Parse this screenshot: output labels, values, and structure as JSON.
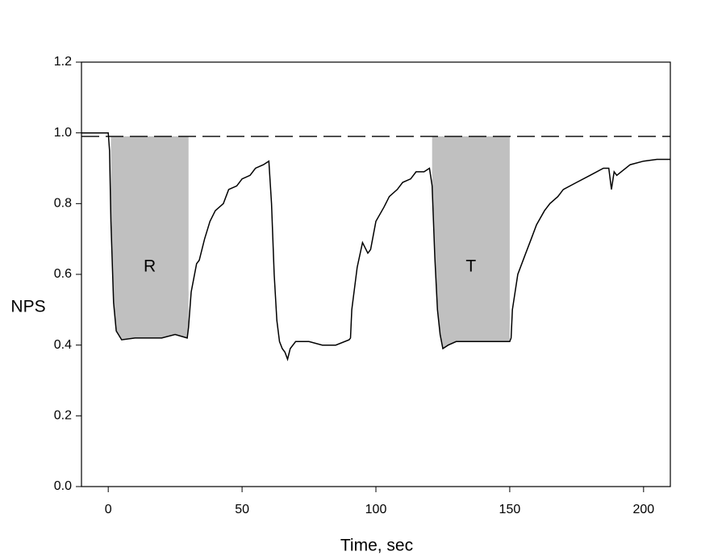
{
  "chart_data": {
    "type": "line",
    "x_label": "Time, sec",
    "y_label": "NPS",
    "xlim": [
      -10,
      210
    ],
    "ylim": [
      0,
      1.2
    ],
    "xticks": [
      0,
      50,
      100,
      150,
      200
    ],
    "yticks": [
      {
        "value": 0,
        "label": "0.0"
      },
      0.2,
      0.4,
      0.6,
      0.8,
      {
        "value": 1,
        "label": "1.0"
      },
      {
        "value": 1.2,
        "label": "1.2"
      }
    ],
    "reference_line": 0.99,
    "shade_color": "#c0c0c0",
    "shaded_regions": [
      {
        "label": "R",
        "x": [
          1,
          30
        ]
      },
      {
        "label": "T",
        "x": [
          121,
          150
        ]
      }
    ],
    "series": [
      {
        "color": "#000000",
        "x": [
          -10,
          -5,
          0,
          0.5,
          1,
          2,
          3,
          5,
          10,
          15,
          20,
          25,
          29.5,
          30,
          31,
          33,
          34,
          36,
          38,
          40,
          43,
          45,
          48,
          50,
          53,
          55,
          58,
          60,
          61,
          62,
          63,
          64,
          65,
          66,
          67,
          68,
          70,
          75,
          80,
          85,
          90,
          90.5,
          91,
          93,
          95,
          97,
          98,
          100,
          103,
          105,
          108,
          110,
          113,
          115,
          118,
          120,
          121,
          122,
          123,
          124,
          125,
          127,
          130,
          135,
          140,
          145,
          150,
          150.5,
          151,
          153,
          156,
          158,
          160,
          163,
          165,
          168,
          170,
          175,
          180,
          185,
          187,
          188,
          189,
          190,
          195,
          200,
          205,
          210
        ],
        "values": [
          1.0,
          1.0,
          1.0,
          0.95,
          0.75,
          0.52,
          0.44,
          0.415,
          0.42,
          0.42,
          0.42,
          0.43,
          0.42,
          0.45,
          0.55,
          0.63,
          0.64,
          0.7,
          0.75,
          0.78,
          0.8,
          0.84,
          0.85,
          0.87,
          0.88,
          0.9,
          0.91,
          0.92,
          0.8,
          0.6,
          0.47,
          0.41,
          0.39,
          0.38,
          0.36,
          0.39,
          0.41,
          0.41,
          0.4,
          0.4,
          0.415,
          0.42,
          0.5,
          0.62,
          0.69,
          0.66,
          0.67,
          0.75,
          0.79,
          0.82,
          0.84,
          0.86,
          0.87,
          0.89,
          0.89,
          0.9,
          0.85,
          0.65,
          0.5,
          0.43,
          0.39,
          0.4,
          0.41,
          0.41,
          0.41,
          0.41,
          0.41,
          0.42,
          0.5,
          0.6,
          0.66,
          0.7,
          0.74,
          0.78,
          0.8,
          0.82,
          0.84,
          0.86,
          0.88,
          0.9,
          0.9,
          0.84,
          0.89,
          0.88,
          0.91,
          0.92,
          0.925,
          0.925
        ]
      }
    ]
  }
}
